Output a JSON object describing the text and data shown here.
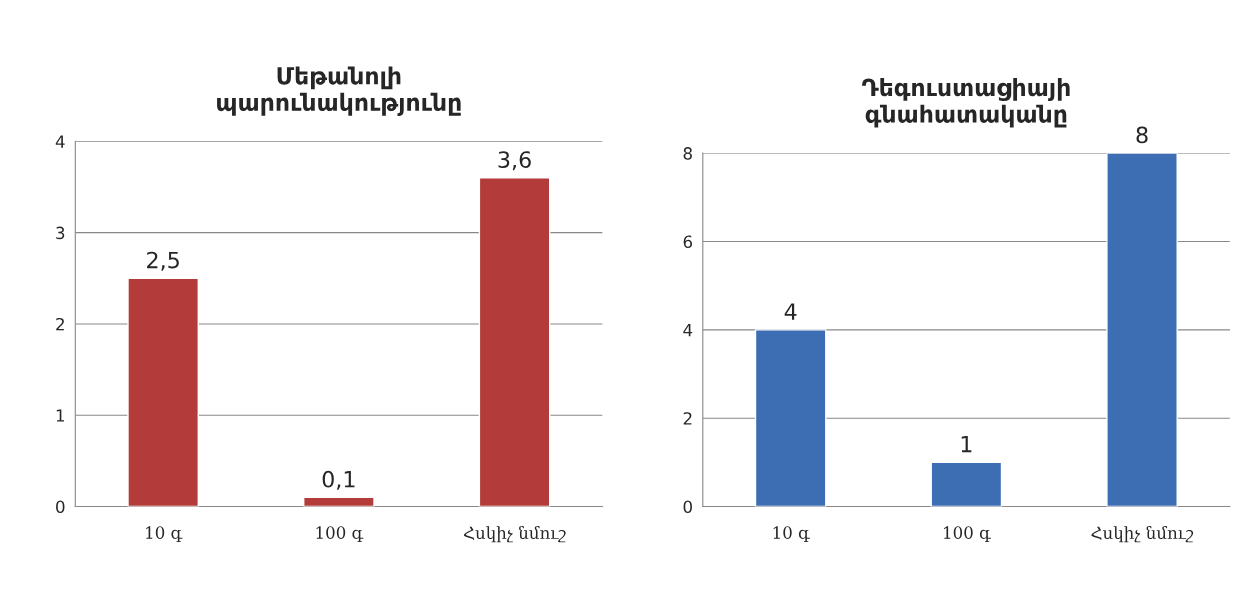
{
  "chart_data": [
    {
      "type": "bar",
      "title": "Մեթանոլի\nպարունակությունը",
      "categories": [
        "10 գ",
        "100 գ",
        "Հսկիչ նմուշ"
      ],
      "values": [
        2.5,
        0.1,
        3.6
      ],
      "value_labels": [
        "2,5",
        "0,1",
        "3,6"
      ],
      "color": "#b33c3a",
      "ylim": [
        0,
        4
      ],
      "yticks": [
        0,
        1,
        2,
        3,
        4
      ],
      "grid": "y",
      "legend": false
    },
    {
      "type": "bar",
      "title": "Դեգուստացիայի\nգնահատականը",
      "categories": [
        "10 գ",
        "100 գ",
        "Հսկիչ նմուշ"
      ],
      "values": [
        4,
        1,
        8
      ],
      "data_labels": true,
      "color": "#3d6db3",
      "ylim": [
        0,
        8
      ],
      "yticks": [
        0,
        2,
        4,
        6,
        8
      ],
      "grid": "y",
      "legend": false
    }
  ]
}
